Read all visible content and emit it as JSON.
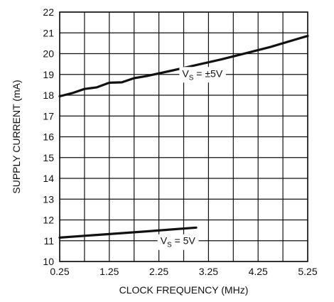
{
  "chart_data": {
    "type": "line",
    "xlabel": "CLOCK FREQUENCY (MHz)",
    "ylabel": "SUPPLY CURRENT (mA)",
    "xlim": [
      0.25,
      5.25
    ],
    "ylim": [
      10,
      22
    ],
    "xticks": [
      "0.25",
      "1.25",
      "2.25",
      "3.25",
      "4.25",
      "5.25"
    ],
    "yticks": [
      "10",
      "11",
      "12",
      "13",
      "14",
      "15",
      "16",
      "17",
      "18",
      "19",
      "20",
      "21",
      "22"
    ],
    "grid": true,
    "series": [
      {
        "label_main": "V",
        "label_sub": "S",
        "label_rest": " = ±5V",
        "x": [
          0.25,
          0.5,
          0.75,
          1.0,
          1.25,
          1.5,
          1.75,
          2.0,
          2.5,
          3.0,
          3.5,
          4.0,
          4.5,
          5.0,
          5.25
        ],
        "y": [
          17.95,
          18.1,
          18.3,
          18.38,
          18.6,
          18.62,
          18.82,
          18.92,
          19.18,
          19.45,
          19.72,
          20.02,
          20.32,
          20.68,
          20.85
        ]
      },
      {
        "label_main": "V",
        "label_sub": "S",
        "label_rest": " = 5V",
        "x": [
          0.25,
          1.0,
          2.0,
          3.0
        ],
        "y": [
          11.15,
          11.28,
          11.45,
          11.63
        ]
      }
    ]
  }
}
